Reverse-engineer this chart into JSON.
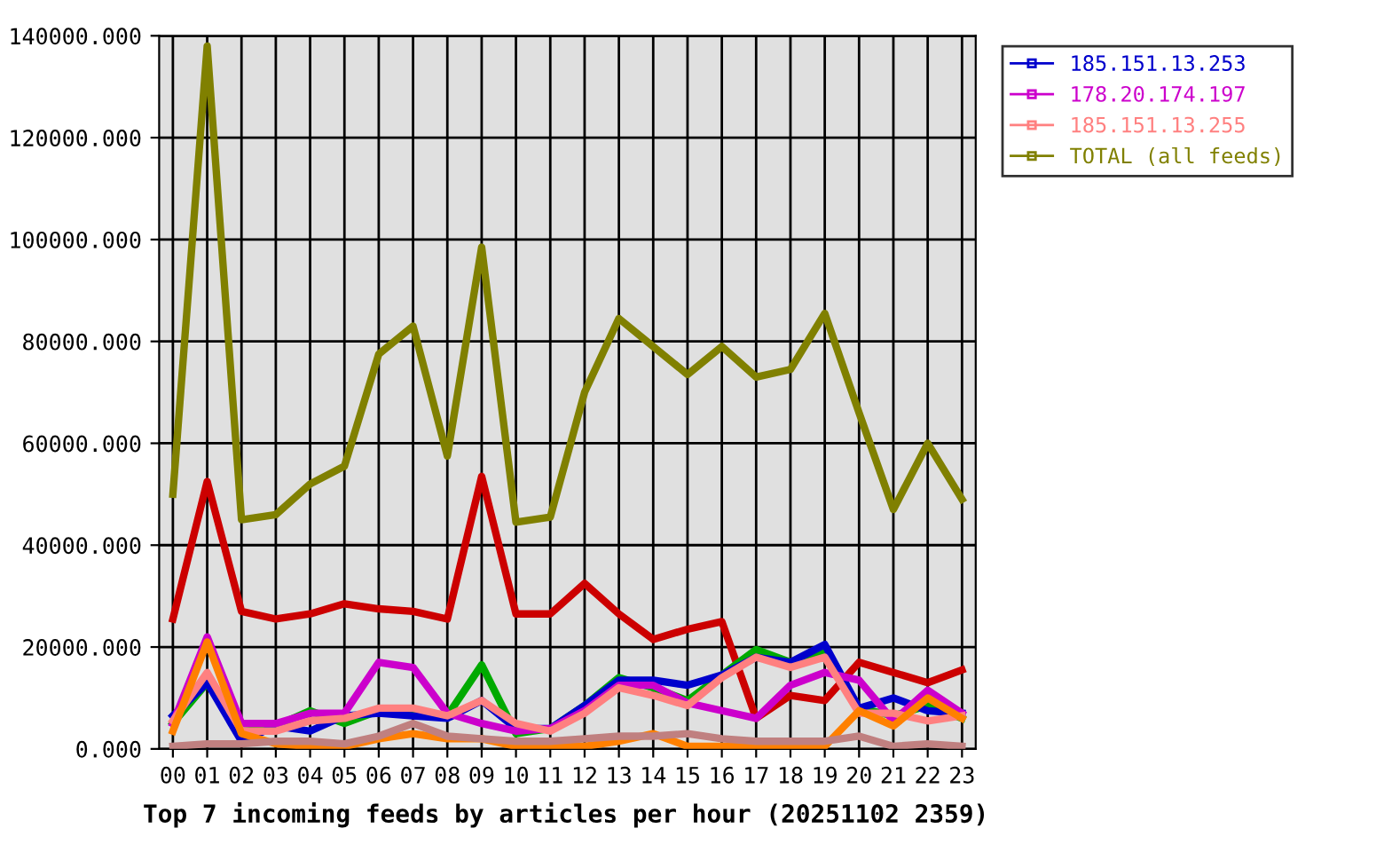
{
  "chart_data": {
    "type": "line",
    "title": "Top 7 incoming feeds by articles per hour (20251102 2359)",
    "categories": [
      "00",
      "01",
      "02",
      "03",
      "04",
      "05",
      "06",
      "07",
      "08",
      "09",
      "10",
      "11",
      "12",
      "13",
      "14",
      "15",
      "16",
      "17",
      "18",
      "19",
      "20",
      "21",
      "22",
      "23"
    ],
    "ylim": [
      0,
      140000
    ],
    "yticks": [
      {
        "value": 0,
        "label": "0.000"
      },
      {
        "value": 20000,
        "label": "20000.000"
      },
      {
        "value": 40000,
        "label": "40000.000"
      },
      {
        "value": 60000,
        "label": "60000.000"
      },
      {
        "value": 80000,
        "label": "80000.000"
      },
      {
        "value": 100000,
        "label": "100000.000"
      },
      {
        "value": 120000,
        "label": "120000.000"
      },
      {
        "value": 140000,
        "label": "140000.000"
      }
    ],
    "grid": true,
    "legend": "top right",
    "series": [
      {
        "color": "#cc0000",
        "values": [
          25500,
          52500,
          27000,
          25500,
          26500,
          28500,
          27500,
          27000,
          25500,
          53500,
          26500,
          26500,
          32500,
          26500,
          21500,
          23500,
          25000,
          6000,
          10500,
          9500,
          17000,
          15000,
          13000,
          15500
        ]
      },
      {
        "color": "#00aa00",
        "values": [
          5000,
          13000,
          5000,
          4500,
          7500,
          5000,
          7500,
          7500,
          6500,
          16500,
          3000,
          4000,
          8500,
          14000,
          12000,
          9500,
          14500,
          19500,
          17000,
          19000,
          8000,
          6500,
          8500,
          6000
        ]
      },
      {
        "name": "185.151.13.253",
        "color": "#0000cc",
        "values": [
          6500,
          13000,
          1500,
          4500,
          3500,
          6500,
          7000,
          6500,
          6000,
          9500,
          4000,
          4000,
          8500,
          13500,
          13500,
          12500,
          14500,
          18000,
          17000,
          20500,
          8000,
          10000,
          7500,
          7000
        ]
      },
      {
        "name": "178.20.174.197",
        "color": "#cc00cc",
        "values": [
          5000,
          22000,
          5000,
          5000,
          7000,
          7000,
          17000,
          16000,
          7000,
          5000,
          3500,
          4000,
          7500,
          12500,
          12500,
          9000,
          7500,
          6000,
          12500,
          15000,
          13500,
          5500,
          11500,
          7000
        ]
      },
      {
        "name": "185.151.13.255",
        "color": "#ff8080",
        "values": [
          5500,
          15000,
          3500,
          3500,
          5500,
          6000,
          8000,
          8000,
          6500,
          9500,
          5000,
          3500,
          7000,
          12000,
          10500,
          8500,
          14000,
          18000,
          16000,
          18000,
          7000,
          7000,
          5500,
          6500
        ]
      },
      {
        "color": "#ff8000",
        "values": [
          3500,
          21000,
          3000,
          1000,
          500,
          500,
          2000,
          3000,
          2000,
          2000,
          500,
          500,
          500,
          1500,
          3000,
          500,
          500,
          500,
          500,
          500,
          7500,
          4500,
          10000,
          6000
        ]
      },
      {
        "color": "#c08080",
        "values": [
          500,
          1000,
          1000,
          1500,
          1500,
          1000,
          2500,
          5000,
          2500,
          2000,
          1500,
          1500,
          2000,
          2500,
          2500,
          3000,
          2000,
          1500,
          1500,
          1500,
          2500,
          500,
          1000,
          500
        ]
      },
      {
        "name": "TOTAL (all feeds)",
        "color": "#808000",
        "values": [
          50000,
          138000,
          45000,
          46000,
          52000,
          55500,
          77500,
          83000,
          57500,
          98500,
          44500,
          45500,
          70000,
          84500,
          79000,
          73500,
          79000,
          73000,
          74500,
          85500,
          66000,
          47000,
          60000,
          49000
        ]
      }
    ]
  }
}
